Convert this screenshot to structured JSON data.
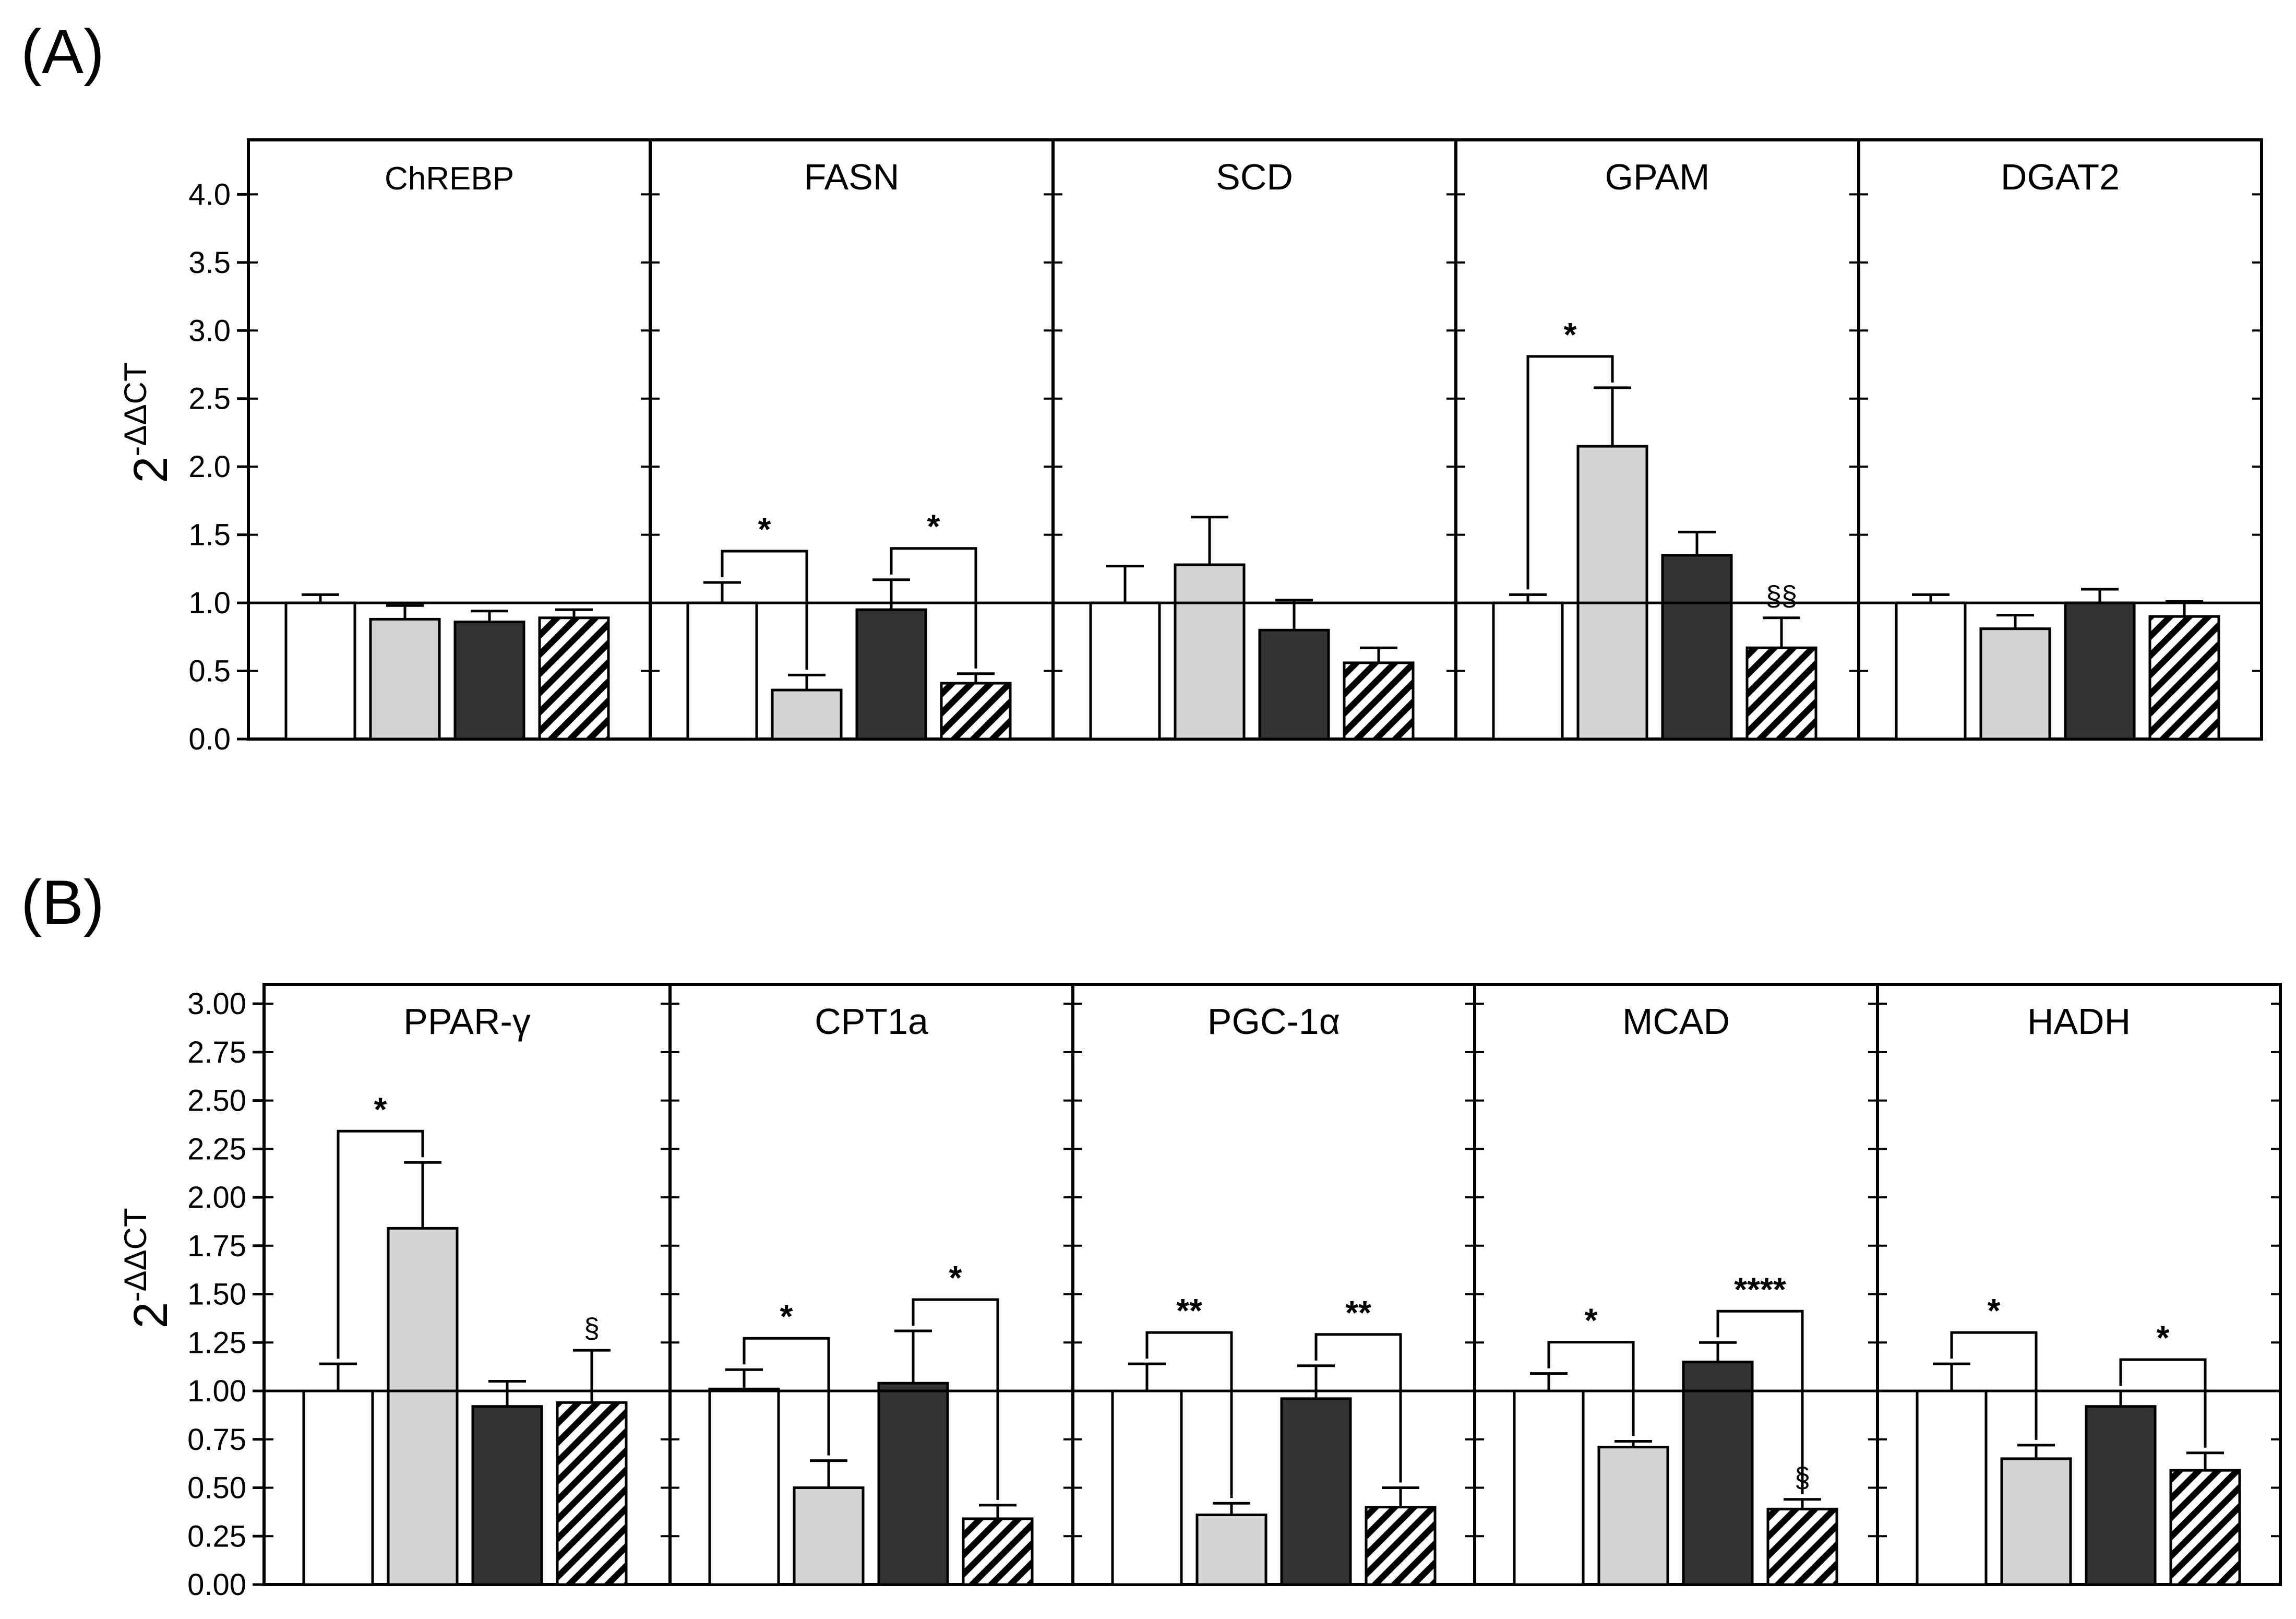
{
  "figure": {
    "y_axis_label": "2",
    "y_axis_superscript": "-ΔΔCT",
    "hatch_color": "#000000",
    "group_colors": [
      "#ffffff",
      "#d3d3d3",
      "#333333",
      "hatched"
    ]
  },
  "chart_data": [
    {
      "panel_label": "(A)",
      "type": "bar",
      "ylim": [
        0,
        4.4
      ],
      "yticks": [
        "0.0",
        "0.5",
        "1.0",
        "1.5",
        "2.0",
        "2.5",
        "3.0",
        "3.5",
        "4.0"
      ],
      "reference_line": 1.0,
      "subplots": [
        {
          "title": "ChREBP",
          "values": [
            1.0,
            0.88,
            0.86,
            0.89
          ],
          "errors": [
            0.06,
            0.1,
            0.08,
            0.06
          ],
          "brackets": [],
          "marks": []
        },
        {
          "title": "FASN",
          "values": [
            1.0,
            0.36,
            0.95,
            0.41
          ],
          "errors": [
            0.15,
            0.11,
            0.22,
            0.07
          ],
          "brackets": [
            {
              "from": 0,
              "to": 1,
              "label": "*"
            },
            {
              "from": 2,
              "to": 3,
              "label": "*"
            }
          ],
          "marks": []
        },
        {
          "title": "SCD",
          "values": [
            1.0,
            1.28,
            0.8,
            0.56
          ],
          "errors": [
            0.27,
            0.35,
            0.22,
            0.11
          ],
          "brackets": [],
          "marks": []
        },
        {
          "title": "GPAM",
          "values": [
            1.0,
            2.15,
            1.35,
            0.67
          ],
          "errors": [
            0.06,
            0.43,
            0.17,
            0.22
          ],
          "brackets": [
            {
              "from": 0,
              "to": 1,
              "label": "*"
            }
          ],
          "marks": [
            {
              "bar": 3,
              "label": "§§"
            }
          ]
        },
        {
          "title": "DGAT2",
          "values": [
            1.0,
            0.81,
            1.0,
            0.9
          ],
          "errors": [
            0.06,
            0.1,
            0.1,
            0.11
          ],
          "brackets": [],
          "marks": []
        }
      ]
    },
    {
      "panel_label": "(B)",
      "type": "bar",
      "ylim": [
        0,
        3.1
      ],
      "yticks": [
        "0.00",
        "0.25",
        "0.50",
        "0.75",
        "1.00",
        "1.25",
        "1.50",
        "1.75",
        "2.00",
        "2.25",
        "2.50",
        "2.75",
        "3.00"
      ],
      "reference_line": 1.0,
      "subplots": [
        {
          "title": "PPAR-γ",
          "values": [
            1.0,
            1.84,
            0.92,
            0.94
          ],
          "errors": [
            0.14,
            0.34,
            0.13,
            0.27
          ],
          "brackets": [
            {
              "from": 0,
              "to": 1,
              "label": "*"
            }
          ],
          "marks": [
            {
              "bar": 3,
              "label": "§"
            }
          ]
        },
        {
          "title": "CPT1a",
          "values": [
            1.01,
            0.5,
            1.04,
            0.34
          ],
          "errors": [
            0.1,
            0.14,
            0.27,
            0.07
          ],
          "brackets": [
            {
              "from": 0,
              "to": 1,
              "label": "*"
            },
            {
              "from": 2,
              "to": 3,
              "label": "*"
            }
          ],
          "marks": []
        },
        {
          "title": "PGC-1α",
          "values": [
            1.0,
            0.36,
            0.96,
            0.4
          ],
          "errors": [
            0.14,
            0.06,
            0.17,
            0.1
          ],
          "brackets": [
            {
              "from": 0,
              "to": 1,
              "label": "**"
            },
            {
              "from": 2,
              "to": 3,
              "label": "**"
            }
          ],
          "marks": []
        },
        {
          "title": "MCAD",
          "values": [
            1.0,
            0.71,
            1.15,
            0.39
          ],
          "errors": [
            0.09,
            0.03,
            0.1,
            0.05
          ],
          "brackets": [
            {
              "from": 0,
              "to": 1,
              "label": "*"
            },
            {
              "from": 2,
              "to": 3,
              "label": "****"
            }
          ],
          "marks": [
            {
              "bar": 3,
              "label": "§"
            }
          ]
        },
        {
          "title": "HADH",
          "values": [
            1.0,
            0.65,
            0.92,
            0.59
          ],
          "errors": [
            0.14,
            0.07,
            0.08,
            0.09
          ],
          "brackets": [
            {
              "from": 0,
              "to": 1,
              "label": "*"
            },
            {
              "from": 2,
              "to": 3,
              "label": "*"
            }
          ],
          "marks": []
        }
      ]
    }
  ]
}
